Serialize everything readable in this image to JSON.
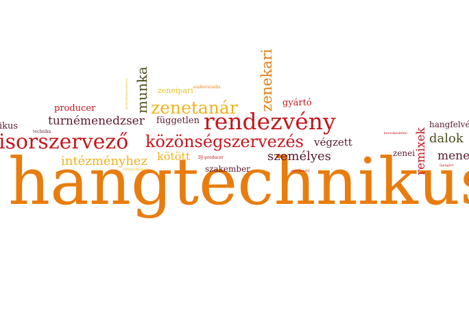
{
  "cloud": {
    "words": [
      {
        "id": "hangtechnikus",
        "text": "hangtechnikus",
        "color": "#e87d0e"
      },
      {
        "id": "rendezveny",
        "text": "rendezvény",
        "color": "#c4161c"
      },
      {
        "id": "musorszervezo",
        "text": "isorszervező",
        "color": "#c4161c"
      },
      {
        "id": "kozonsegszervezes",
        "text": "közönségszervezés",
        "color": "#c4161c"
      },
      {
        "id": "zenetanar",
        "text": "zenetanár",
        "color": "#f0b21b"
      },
      {
        "id": "zenekari",
        "text": "zenekari",
        "color": "#e87d0e"
      },
      {
        "id": "munka",
        "text": "munka",
        "color": "#4d4d1a"
      },
      {
        "id": "zeneipari",
        "text": "zeneipari",
        "color": "#e8c22b"
      },
      {
        "id": "audiovizualis",
        "text": "audiovizuális",
        "color": "#e87d0e"
      },
      {
        "id": "projektmenedzser",
        "text": "projektmenedzser",
        "color": "#e8c22b"
      },
      {
        "id": "gyarto",
        "text": "gyártó",
        "color": "#c4161c"
      },
      {
        "id": "producer",
        "text": "producer",
        "color": "#c4161c"
      },
      {
        "id": "turnemenedzser",
        "text": "turnémenedzser",
        "color": "#5a1a2e"
      },
      {
        "id": "fuggetlen",
        "text": "független",
        "color": "#5a1a2e"
      },
      {
        "id": "ikus",
        "text": "ikus",
        "color": "#5a1a2e"
      },
      {
        "id": "technika",
        "text": "technika",
        "color": "#5a1a2e"
      },
      {
        "id": "intezmenyhez",
        "text": "intézményhez",
        "color": "#f0b21b"
      },
      {
        "id": "kotott",
        "text": "kötött",
        "color": "#f0b21b"
      },
      {
        "id": "dj-producer",
        "text": "DJ-producer",
        "color": "#c4161c"
      },
      {
        "id": "fenytechnikus",
        "text": "fénytechnikus",
        "color": "#f0b21b"
      },
      {
        "id": "szemelyes",
        "text": "személyes",
        "color": "#5a1a2e"
      },
      {
        "id": "vegzett",
        "text": "végzett",
        "color": "#5a1a2e"
      },
      {
        "id": "szakember",
        "text": "szakember",
        "color": "#5a1a2e"
      },
      {
        "id": "szerkeszto",
        "text": "szerkesztő",
        "color": "#c4161c"
      },
      {
        "id": "kereskedelmi",
        "text": "kereskedelmi",
        "color": "#c4161c"
      },
      {
        "id": "zenei",
        "text": "zenei",
        "color": "#5a1a2e"
      },
      {
        "id": "remixek",
        "text": "remixek",
        "color": "#c4161c"
      },
      {
        "id": "hangfelve",
        "text": "hangfelvé",
        "color": "#5a1a2e"
      },
      {
        "id": "dalok",
        "text": "dalok",
        "color": "#4d4d1a"
      },
      {
        "id": "mene",
        "text": "mene",
        "color": "#5a1a2e"
      },
      {
        "id": "ujsagiro",
        "text": "újságíró",
        "color": "#c4161c"
      }
    ]
  }
}
